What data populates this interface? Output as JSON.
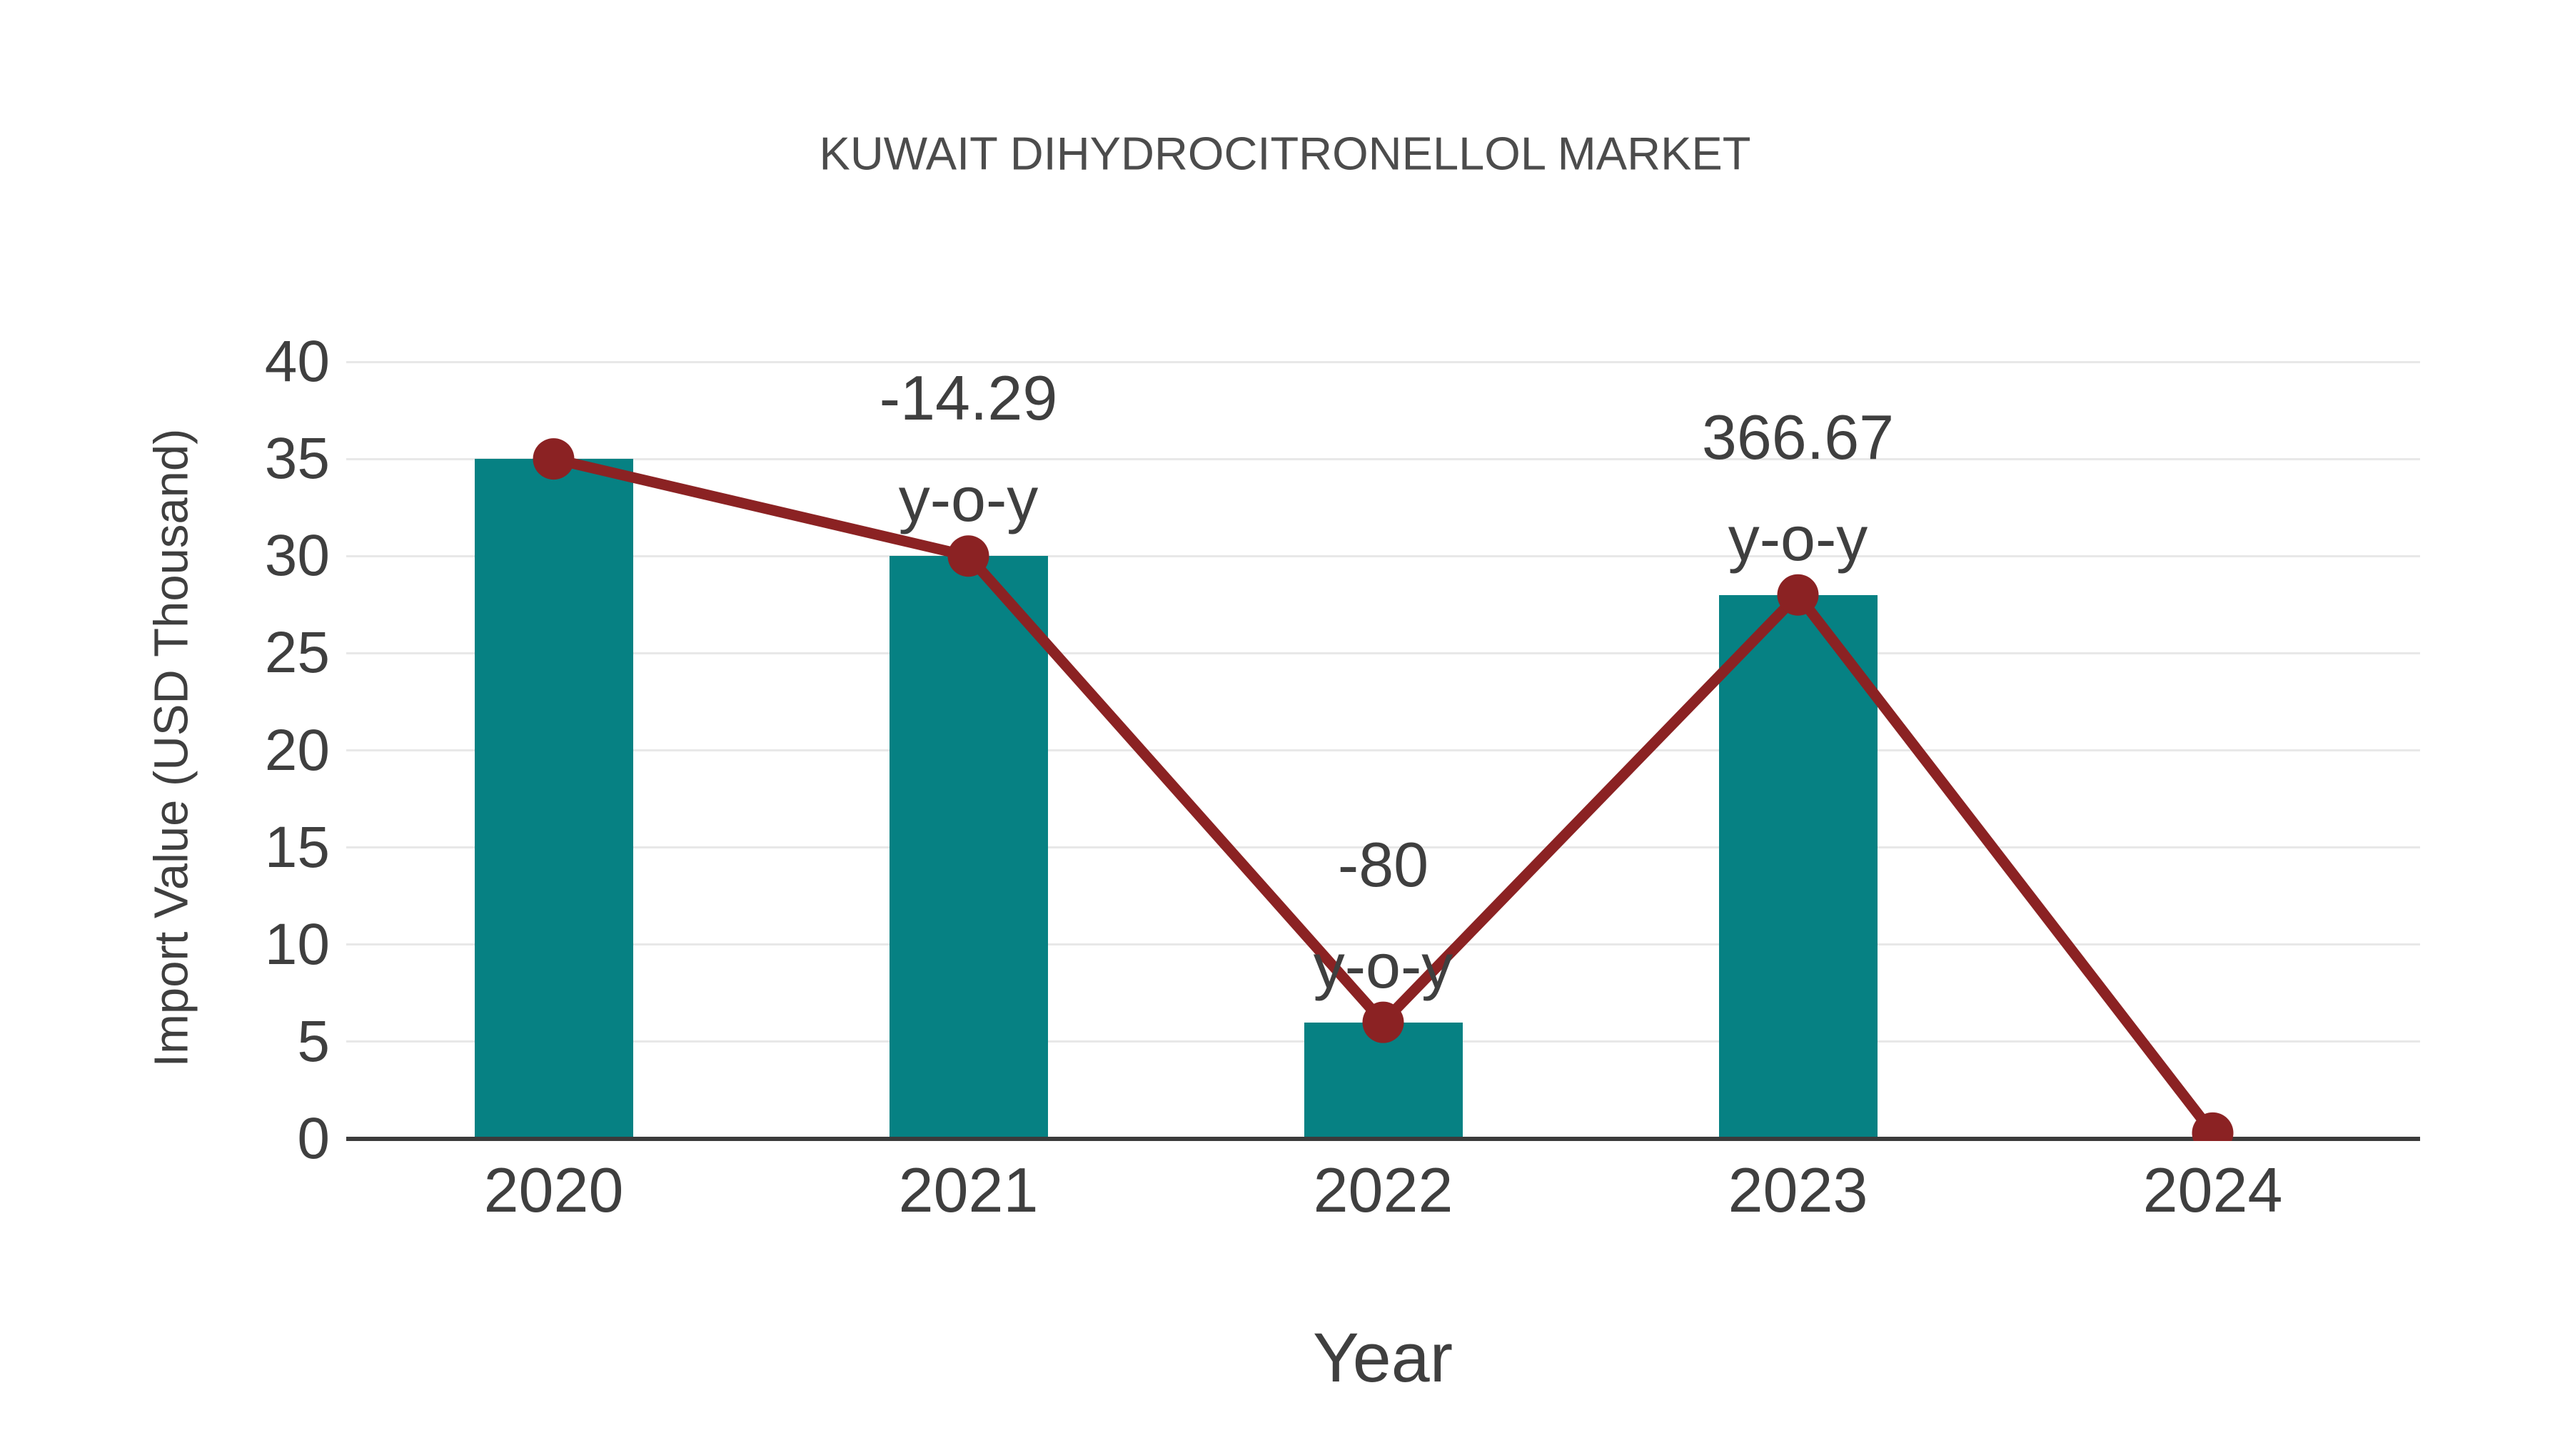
{
  "title": "KUWAIT DIHYDROCITRONELLOL MARKET",
  "chart_data": {
    "type": "bar",
    "title": "KUWAIT DIHYDROCITRONELLOL MARKET",
    "xlabel": "Year",
    "ylabel": "Import Value (USD Thousand)",
    "categories": [
      "2020",
      "2021",
      "2022",
      "2023",
      "2024"
    ],
    "series": [
      {
        "name": "import-value-bars",
        "type": "bar",
        "values": [
          35,
          30,
          6,
          28,
          null
        ]
      },
      {
        "name": "import-value-trend-line",
        "type": "line",
        "values": [
          35,
          30,
          6,
          28,
          0.3
        ]
      }
    ],
    "annotations": [
      {
        "category": "2021",
        "lines": [
          "-14.29",
          "y-o-y"
        ]
      },
      {
        "category": "2022",
        "lines": [
          "-80",
          "y-o-y"
        ]
      },
      {
        "category": "2023",
        "lines": [
          "366.67",
          "y-o-y"
        ]
      }
    ],
    "yticks": [
      0,
      5,
      10,
      15,
      20,
      25,
      30,
      35,
      40
    ],
    "ylim": [
      0,
      41
    ],
    "grid": true,
    "legend": false,
    "colors": {
      "bar": "#068183",
      "line": "#8b2223",
      "marker": "#8b2223",
      "text": "#3f3f3f",
      "title_text": "#4c4c4c",
      "grid": "#e8e8e8",
      "axis": "#3b3b3b",
      "background": "#ffffff"
    }
  }
}
